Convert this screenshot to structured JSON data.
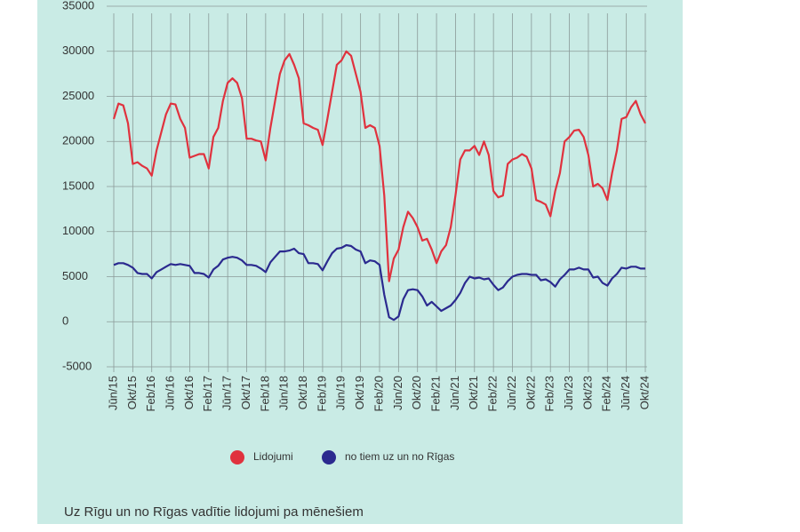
{
  "chart_data": {
    "type": "line",
    "caption": "Uz Rīgu un no Rīgas vadītie lidojumi pa mēnešiem",
    "categories": [
      "Jūn/15",
      null,
      null,
      null,
      "Okt/15",
      null,
      null,
      null,
      "Feb/16",
      null,
      null,
      null,
      "Jūn/16",
      null,
      null,
      null,
      "Okt/16",
      null,
      null,
      null,
      "Feb/17",
      null,
      null,
      null,
      "Jūn/17",
      null,
      null,
      null,
      "Okt/17",
      null,
      null,
      null,
      "Feb/18",
      null,
      null,
      null,
      "Jūn/18",
      null,
      null,
      null,
      "Okt/18",
      null,
      null,
      null,
      "Feb/19",
      null,
      null,
      null,
      "Jūn/19",
      null,
      null,
      null,
      "Okt/19",
      null,
      null,
      null,
      "Feb/20",
      null,
      null,
      null,
      "Jūn/20",
      null,
      null,
      null,
      "Okt/20",
      null,
      null,
      null,
      "Feb/21",
      null,
      null,
      null,
      "Jūn/21",
      null,
      null,
      null,
      "Okt/21",
      null,
      null,
      null,
      "Feb/22",
      null,
      null,
      null,
      "Jūn/22",
      null,
      null,
      null,
      "Okt/22",
      null,
      null,
      null,
      "Feb/23",
      null,
      null,
      null,
      "Jūn/23",
      null,
      null,
      null,
      "Okt/23",
      null,
      null,
      null,
      "Feb/24",
      null,
      null,
      null,
      "Jūn/24",
      null,
      null,
      null,
      "Okt/24"
    ],
    "series": [
      {
        "name": "Lidojumi",
        "color": "#e0323e",
        "values": [
          22500,
          24200,
          24000,
          22000,
          17500,
          17700,
          17300,
          17000,
          16200,
          19000,
          21000,
          23000,
          24200,
          24100,
          22500,
          21500,
          18200,
          18400,
          18600,
          18600,
          17000,
          20500,
          21500,
          24500,
          26500,
          27000,
          26500,
          24800,
          20300,
          20300,
          20100,
          20000,
          17900,
          21500,
          24500,
          27500,
          29000,
          29700,
          28500,
          27000,
          22000,
          21800,
          21500,
          21300,
          19600,
          22500,
          25500,
          28500,
          29000,
          30000,
          29500,
          27500,
          25500,
          21500,
          21800,
          21500,
          19500,
          14000,
          4500,
          7000,
          8000,
          10500,
          12200,
          11500,
          10500,
          9000,
          9200,
          8000,
          6500,
          7800,
          8500,
          10500,
          14000,
          18000,
          19000,
          19000,
          19500,
          18500,
          20000,
          18500,
          14500,
          13800,
          14000,
          17500,
          18000,
          18200,
          18600,
          18300,
          17000,
          13500,
          13300,
          13000,
          11700,
          14500,
          16500,
          20000,
          20500,
          21200,
          21300,
          20500,
          18500,
          15000,
          15300,
          14800,
          13500,
          16500,
          19000,
          22500,
          22700,
          23800,
          24500,
          23000,
          22000
        ]
      },
      {
        "name": "no tiem uz un no Rīgas",
        "color": "#2b2a8f",
        "values": [
          6300,
          6500,
          6500,
          6300,
          6000,
          5400,
          5300,
          5300,
          4800,
          5500,
          5800,
          6100,
          6400,
          6300,
          6400,
          6300,
          6200,
          5400,
          5400,
          5300,
          4900,
          5800,
          6200,
          6900,
          7100,
          7200,
          7100,
          6800,
          6300,
          6300,
          6200,
          5900,
          5500,
          6600,
          7200,
          7800,
          7800,
          7900,
          8100,
          7600,
          7500,
          6500,
          6500,
          6400,
          5700,
          6700,
          7600,
          8100,
          8200,
          8500,
          8400,
          8000,
          7800,
          6500,
          6800,
          6700,
          6300,
          3000,
          500,
          200,
          600,
          2500,
          3500,
          3600,
          3500,
          2800,
          1800,
          2200,
          1700,
          1200,
          1500,
          1800,
          2400,
          3200,
          4300,
          5000,
          4800,
          4900,
          4700,
          4800,
          4100,
          3500,
          3800,
          4500,
          5000,
          5200,
          5300,
          5300,
          5200,
          5200,
          4600,
          4700,
          4400,
          3900,
          4700,
          5200,
          5800,
          5800,
          6000,
          5800,
          5800,
          4900,
          5000,
          4300,
          4000,
          4800,
          5300,
          6000,
          5900,
          6100,
          6100,
          5900,
          5900
        ]
      }
    ],
    "ylim": [
      -5000,
      35000
    ],
    "yticks": [
      -5000,
      0,
      5000,
      10000,
      15000,
      20000,
      25000,
      30000,
      35000
    ],
    "grid": true
  }
}
